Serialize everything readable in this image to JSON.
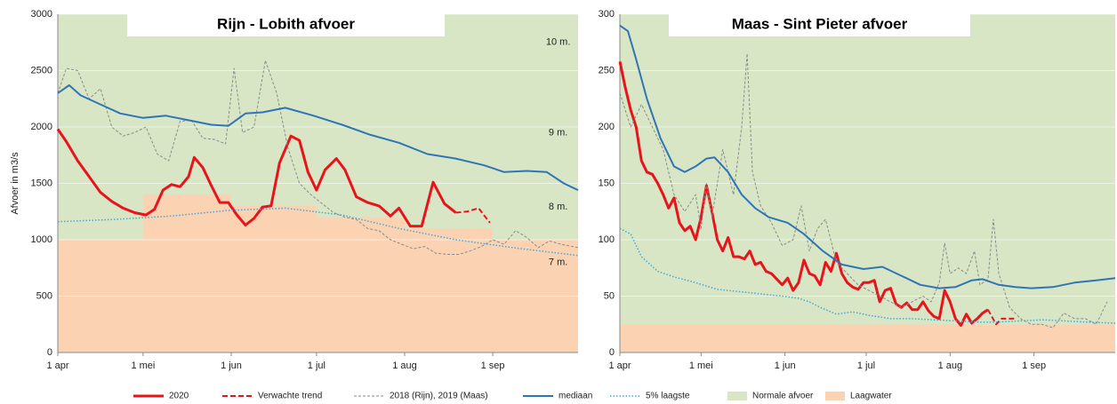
{
  "chart_data": [
    {
      "type": "line",
      "title": "Rijn - Lobith afvoer",
      "ylabel": "Afvoer in m3/s",
      "xlim": [
        0,
        183
      ],
      "ylim": [
        0,
        3000
      ],
      "yticks": [
        0,
        500,
        1000,
        1500,
        2000,
        2500,
        3000
      ],
      "grid": true,
      "xticks": [
        {
          "value": 0,
          "label": "1 apr"
        },
        {
          "value": 30,
          "label": "1 mei"
        },
        {
          "value": 61,
          "label": "1 jun"
        },
        {
          "value": 91,
          "label": "1 jul"
        },
        {
          "value": 122,
          "label": "1 aug"
        },
        {
          "value": 153,
          "label": "1 sep"
        }
      ],
      "legend": "bottom",
      "annotations": [
        {
          "text": "10 m.",
          "x": 176,
          "y": 2750
        },
        {
          "text": "9 m.",
          "x": 176,
          "y": 1950
        },
        {
          "text": "8 m.",
          "x": 176,
          "y": 1290
        },
        {
          "text": "7 m.",
          "x": 176,
          "y": 800
        }
      ],
      "areas": [
        {
          "name": "Normale afvoer",
          "color": "#d8e6c5"
        },
        {
          "name": "Laagwater",
          "color": "#fbd3b3",
          "x": [
            0,
            30,
            61,
            91,
            122,
            153
          ],
          "values": [
            1000,
            1400,
            1300,
            1200,
            1100,
            1000
          ]
        }
      ],
      "series": [
        {
          "name": "2020",
          "color": "#e8141b",
          "style": "solid",
          "width": 3,
          "x": [
            0,
            3,
            7,
            11,
            15,
            19,
            23,
            27,
            31,
            34,
            37,
            40,
            43,
            46,
            48,
            51,
            54,
            57,
            60,
            63,
            66,
            69,
            72,
            75,
            78,
            82,
            85,
            88,
            91,
            94,
            98,
            101,
            105,
            109,
            113,
            117,
            120,
            124,
            128,
            132,
            136,
            140
          ],
          "values": [
            1980,
            1870,
            1700,
            1560,
            1420,
            1340,
            1280,
            1240,
            1220,
            1270,
            1440,
            1490,
            1470,
            1560,
            1730,
            1640,
            1480,
            1330,
            1330,
            1220,
            1130,
            1190,
            1290,
            1300,
            1680,
            1920,
            1880,
            1600,
            1440,
            1620,
            1720,
            1620,
            1380,
            1330,
            1300,
            1210,
            1280,
            1120,
            1120,
            1510,
            1320,
            1240
          ]
        },
        {
          "name": "Verwachte trend",
          "color": "#e8141b",
          "style": "dashed",
          "width": 2,
          "x": [
            140,
            144,
            148,
            152
          ],
          "values": [
            1240,
            1250,
            1280,
            1150
          ]
        },
        {
          "name": "2018 (Rijn), 2019 (Maas)",
          "color": "#8a8a8a",
          "style": "greydash",
          "width": 1,
          "x": [
            0,
            3,
            7,
            11,
            15,
            19,
            23,
            27,
            31,
            35,
            39,
            43,
            47,
            51,
            55,
            59,
            62,
            65,
            69,
            73,
            77,
            81,
            85,
            89,
            93,
            97,
            101,
            105,
            109,
            113,
            117,
            121,
            125,
            129,
            133,
            137,
            141,
            145,
            149,
            153,
            157,
            161,
            165,
            169,
            173,
            177,
            183
          ],
          "values": [
            2300,
            2520,
            2500,
            2250,
            2340,
            2000,
            1920,
            1950,
            2000,
            1760,
            1700,
            2050,
            2060,
            1900,
            1890,
            1850,
            2520,
            1950,
            2000,
            2590,
            2300,
            1810,
            1500,
            1400,
            1320,
            1240,
            1200,
            1180,
            1100,
            1080,
            1000,
            960,
            920,
            940,
            880,
            870,
            870,
            900,
            940,
            1000,
            960,
            1080,
            1020,
            930,
            990,
            960,
            930
          ]
        },
        {
          "name": "mediaan",
          "color": "#2e75b6",
          "style": "solid",
          "width": 2,
          "x": [
            0,
            4,
            8,
            15,
            22,
            30,
            38,
            46,
            54,
            60,
            66,
            72,
            80,
            90,
            100,
            110,
            120,
            130,
            140,
            150,
            157,
            165,
            172,
            178,
            183
          ],
          "values": [
            2300,
            2370,
            2280,
            2200,
            2120,
            2080,
            2100,
            2060,
            2020,
            2010,
            2120,
            2130,
            2170,
            2100,
            2020,
            1930,
            1860,
            1760,
            1720,
            1660,
            1600,
            1610,
            1600,
            1500,
            1440
          ]
        },
        {
          "name": "5% laagste",
          "color": "#46a8d8",
          "style": "dotted",
          "width": 1.5,
          "x": [
            0,
            20,
            40,
            60,
            80,
            100,
            120,
            140,
            160,
            183
          ],
          "values": [
            1160,
            1180,
            1210,
            1260,
            1280,
            1220,
            1100,
            1000,
            930,
            860
          ]
        }
      ]
    },
    {
      "type": "line",
      "title": "Maas - Sint Pieter afvoer",
      "xlim": [
        0,
        183
      ],
      "ylim": [
        0,
        300
      ],
      "yticks": [
        0,
        50,
        100,
        150,
        200,
        250,
        300
      ],
      "grid": true,
      "xticks": [
        {
          "value": 0,
          "label": "1 apr"
        },
        {
          "value": 30,
          "label": "1 mei"
        },
        {
          "value": 61,
          "label": "1 jun"
        },
        {
          "value": 91,
          "label": "1 jul"
        },
        {
          "value": 122,
          "label": "1 aug"
        },
        {
          "value": 153,
          "label": "1 sep"
        }
      ],
      "areas": [
        {
          "color": "#d8e6c5"
        },
        {
          "color": "#fbd3b3",
          "x": [
            0
          ],
          "values": [
            25
          ]
        }
      ],
      "series": [
        {
          "color": "#e8141b",
          "style": "solid",
          "width": 3,
          "x": [
            0,
            2,
            4,
            6,
            8,
            10,
            12,
            14,
            16,
            18,
            20,
            22,
            24,
            26,
            28,
            30,
            32,
            34,
            36,
            38,
            40,
            42,
            44,
            46,
            48,
            50,
            52,
            54,
            56,
            58,
            60,
            62,
            64,
            66,
            68,
            70,
            72,
            74,
            76,
            78,
            80,
            82,
            84,
            86,
            88,
            90,
            92,
            94,
            96,
            98,
            100,
            102,
            104,
            106,
            108,
            110,
            112,
            114,
            116,
            118,
            120,
            122,
            124,
            126,
            128,
            130,
            132,
            134,
            136
          ],
          "values": [
            258,
            235,
            215,
            200,
            170,
            160,
            158,
            150,
            140,
            128,
            137,
            115,
            108,
            112,
            100,
            120,
            148,
            125,
            100,
            90,
            102,
            85,
            85,
            83,
            90,
            78,
            80,
            72,
            70,
            65,
            60,
            66,
            55,
            62,
            82,
            70,
            68,
            60,
            80,
            72,
            88,
            70,
            62,
            58,
            56,
            62,
            62,
            64,
            45,
            55,
            57,
            43,
            40,
            44,
            38,
            38,
            45,
            37,
            32,
            30,
            55,
            45,
            30,
            24,
            34,
            26,
            30,
            35,
            38
          ]
        },
        {
          "color": "#e8141b",
          "style": "dashed",
          "width": 2,
          "x": [
            136,
            139,
            141,
            143,
            146
          ],
          "values": [
            38,
            25,
            30,
            30,
            30
          ]
        },
        {
          "color": "#8a8a8a",
          "style": "greydash",
          "width": 1,
          "x": [
            0,
            4,
            8,
            12,
            16,
            20,
            24,
            28,
            30,
            32,
            34,
            38,
            42,
            45,
            47,
            49,
            52,
            56,
            60,
            64,
            67,
            70,
            73,
            76,
            80,
            84,
            88,
            92,
            96,
            100,
            104,
            108,
            112,
            115,
            118,
            120,
            122,
            125,
            128,
            131,
            133,
            136,
            138,
            140,
            144,
            148,
            152,
            156,
            160,
            164,
            168,
            172,
            176,
            180
          ],
          "values": [
            230,
            200,
            220,
            200,
            180,
            140,
            125,
            140,
            110,
            150,
            120,
            180,
            140,
            200,
            265,
            160,
            130,
            115,
            95,
            100,
            130,
            90,
            110,
            118,
            80,
            70,
            60,
            55,
            50,
            45,
            40,
            45,
            50,
            45,
            62,
            97,
            70,
            75,
            70,
            90,
            60,
            65,
            118,
            70,
            40,
            30,
            25,
            25,
            22,
            35,
            30,
            30,
            25,
            45
          ]
        },
        {
          "color": "#2e75b6",
          "style": "solid",
          "width": 2,
          "x": [
            0,
            3,
            6,
            10,
            15,
            20,
            24,
            28,
            32,
            35,
            40,
            45,
            50,
            55,
            62,
            68,
            75,
            82,
            90,
            97,
            104,
            111,
            118,
            124,
            130,
            134,
            140,
            146,
            152,
            160,
            168,
            176,
            183
          ],
          "values": [
            290,
            285,
            260,
            225,
            190,
            165,
            160,
            165,
            172,
            173,
            160,
            140,
            128,
            120,
            115,
            105,
            90,
            78,
            74,
            76,
            68,
            60,
            57,
            58,
            64,
            65,
            60,
            58,
            57,
            58,
            62,
            64,
            66
          ]
        },
        {
          "color": "#46a8d8",
          "style": "dotted",
          "width": 1.5,
          "x": [
            0,
            4,
            8,
            14,
            20,
            28,
            36,
            44,
            52,
            60,
            66,
            70,
            74,
            80,
            86,
            92,
            100,
            108,
            116,
            124,
            132,
            140,
            148,
            156,
            164,
            172,
            183
          ],
          "values": [
            110,
            105,
            85,
            72,
            67,
            62,
            56,
            54,
            52,
            50,
            48,
            45,
            40,
            34,
            36,
            33,
            30,
            30,
            29,
            28,
            27,
            27,
            28,
            29,
            28,
            27,
            26
          ]
        }
      ]
    }
  ]
}
